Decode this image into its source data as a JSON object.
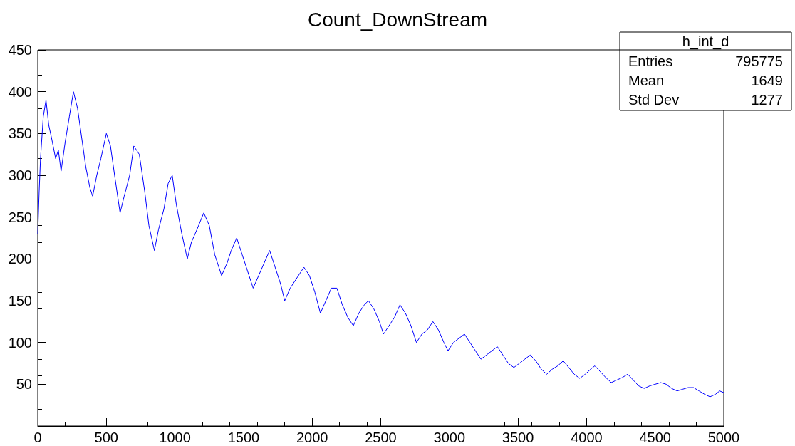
{
  "chart_data": {
    "type": "line",
    "title": "Count_DownStream",
    "annotations": [
      "h_int_d",
      "Entries",
      "795775",
      "Mean",
      "1649",
      "Std Dev",
      "1277"
    ],
    "series": [
      {
        "color": "#0000ff",
        "x": [
          0,
          10,
          20,
          40,
          60,
          80,
          100,
          130,
          150,
          170,
          200,
          230,
          260,
          290,
          320,
          350,
          380,
          400,
          430,
          460,
          500,
          530,
          560,
          600,
          630,
          670,
          700,
          740,
          780,
          810,
          850,
          880,
          920,
          950,
          980,
          1010,
          1050,
          1090,
          1120,
          1160,
          1210,
          1250,
          1290,
          1340,
          1380,
          1410,
          1450,
          1490,
          1530,
          1570,
          1610,
          1650,
          1690,
          1730,
          1770,
          1800,
          1840,
          1880,
          1940,
          1980,
          2020,
          2060,
          2100,
          2140,
          2180,
          2220,
          2260,
          2300,
          2340,
          2380,
          2410,
          2450,
          2490,
          2520,
          2560,
          2600,
          2640,
          2680,
          2720,
          2760,
          2800,
          2840,
          2880,
          2920,
          2960,
          2990,
          3030,
          3070,
          3110,
          3150,
          3190,
          3230,
          3270,
          3310,
          3350,
          3390,
          3430,
          3470,
          3510,
          3550,
          3590,
          3630,
          3670,
          3710,
          3750,
          3790,
          3830,
          3870,
          3910,
          3950,
          3990,
          4030,
          4060,
          4100,
          4140,
          4180,
          4220,
          4260,
          4300,
          4340,
          4380,
          4420,
          4460,
          4500,
          4540,
          4580,
          4620,
          4660,
          4700,
          4740,
          4780,
          4820,
          4860,
          4900,
          4940,
          4970,
          5000
        ],
        "values": [
          230,
          280,
          320,
          370,
          390,
          360,
          345,
          320,
          330,
          305,
          340,
          370,
          400,
          380,
          345,
          310,
          285,
          275,
          300,
          320,
          350,
          335,
          300,
          255,
          275,
          300,
          335,
          325,
          280,
          240,
          210,
          235,
          260,
          290,
          300,
          265,
          230,
          200,
          220,
          235,
          255,
          240,
          205,
          180,
          195,
          210,
          225,
          205,
          185,
          165,
          180,
          195,
          210,
          190,
          170,
          150,
          165,
          175,
          190,
          180,
          160,
          135,
          150,
          165,
          165,
          145,
          130,
          120,
          135,
          145,
          150,
          140,
          125,
          110,
          120,
          130,
          145,
          135,
          120,
          100,
          110,
          115,
          125,
          115,
          100,
          90,
          100,
          105,
          110,
          100,
          90,
          80,
          85,
          90,
          95,
          85,
          75,
          70,
          75,
          80,
          85,
          78,
          68,
          62,
          68,
          72,
          78,
          70,
          62,
          57,
          62,
          68,
          72,
          65,
          58,
          52,
          55,
          58,
          62,
          55,
          48,
          45,
          48,
          50,
          52,
          50,
          45,
          42,
          44,
          46,
          46,
          42,
          38,
          35,
          38,
          42,
          40
        ]
      }
    ],
    "xlim": [
      0,
      5000
    ],
    "xticks": [
      0,
      500,
      1000,
      1500,
      2000,
      2500,
      3000,
      3500,
      4000,
      4500,
      5000
    ],
    "ylim": [
      0,
      450
    ],
    "yticks": [
      50,
      100,
      150,
      200,
      250,
      300,
      350,
      400,
      450
    ],
    "grid": false,
    "marker": "none",
    "line_style": "solid"
  }
}
